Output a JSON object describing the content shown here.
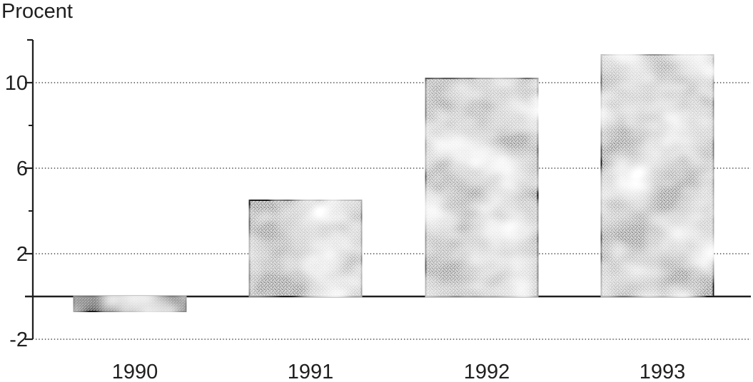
{
  "figure": {
    "background": "#ffffff",
    "style": "scanned black-and-white print chart with stippled halftone bars"
  },
  "chart_data": {
    "type": "bar",
    "title": "",
    "ylabel": "Procent",
    "xlabel": "",
    "categories": [
      "1990",
      "1991",
      "1992",
      "1993"
    ],
    "values": [
      -0.7,
      4.5,
      10.2,
      11.3
    ],
    "ylim": [
      -2,
      12
    ],
    "yticks_major": [
      10,
      6,
      2,
      -2
    ],
    "yticks_minor": [
      8,
      4
    ],
    "baseline": 0,
    "grid": "dotted horizontal gridlines at labeled ticks",
    "legend": "none",
    "bar_style": "stippled halftone gray fill with dark outline; 1990 bar darker",
    "colors": {
      "ink": "#1f1f1f",
      "grid_dots": "#474747",
      "bar_base": "#dedede",
      "bar_base_dark": "#9e9e9e",
      "background": "#ffffff"
    }
  }
}
